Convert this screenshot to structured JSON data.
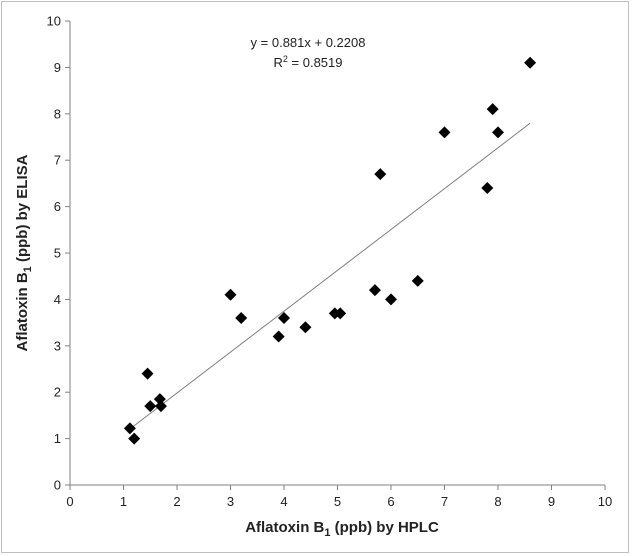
{
  "chart_data": {
    "type": "scatter",
    "title": "",
    "xlabel": "Aflatoxin B1 (ppb) by HPLC",
    "xlabel_parts": {
      "pre": "Aflatoxin B",
      "sub": "1",
      "post": " (ppb) by HPLC"
    },
    "ylabel": "Aflatoxin B1 (ppb) by ELISA",
    "ylabel_parts": {
      "pre": "Aflatoxin B",
      "sub": "1",
      "post": " (ppb) by ELISA"
    },
    "xlim": [
      0,
      10
    ],
    "ylim": [
      0,
      10
    ],
    "x_ticks": [
      0,
      1,
      2,
      3,
      4,
      5,
      6,
      7,
      8,
      9,
      10
    ],
    "y_ticks": [
      0,
      1,
      2,
      3,
      4,
      5,
      6,
      7,
      8,
      9,
      10
    ],
    "grid": false,
    "legend": "none",
    "marker": "diamond",
    "marker_color": "#000000",
    "trendline_color": "#7f7f7f",
    "trendline": {
      "slope": 0.881,
      "intercept": 0.2208,
      "x_range": [
        1.1,
        8.6
      ]
    },
    "equation_text": "y = 0.881x + 0.2208",
    "r2_text": {
      "pre": "R",
      "sup": "2",
      "post": " = 0.8519"
    },
    "points": [
      {
        "x": 1.12,
        "y": 1.22
      },
      {
        "x": 1.2,
        "y": 1.0
      },
      {
        "x": 1.45,
        "y": 2.4
      },
      {
        "x": 1.5,
        "y": 1.7
      },
      {
        "x": 1.68,
        "y": 1.85
      },
      {
        "x": 1.7,
        "y": 1.7
      },
      {
        "x": 3.0,
        "y": 4.1
      },
      {
        "x": 3.2,
        "y": 3.6
      },
      {
        "x": 3.9,
        "y": 3.2
      },
      {
        "x": 4.0,
        "y": 3.6
      },
      {
        "x": 4.4,
        "y": 3.4
      },
      {
        "x": 4.95,
        "y": 3.7
      },
      {
        "x": 5.05,
        "y": 3.7
      },
      {
        "x": 5.7,
        "y": 4.2
      },
      {
        "x": 5.8,
        "y": 6.7
      },
      {
        "x": 6.0,
        "y": 4.0
      },
      {
        "x": 6.5,
        "y": 4.4
      },
      {
        "x": 7.0,
        "y": 7.6
      },
      {
        "x": 7.8,
        "y": 6.4
      },
      {
        "x": 7.9,
        "y": 8.1
      },
      {
        "x": 8.0,
        "y": 7.6
      },
      {
        "x": 8.6,
        "y": 9.1
      }
    ]
  }
}
